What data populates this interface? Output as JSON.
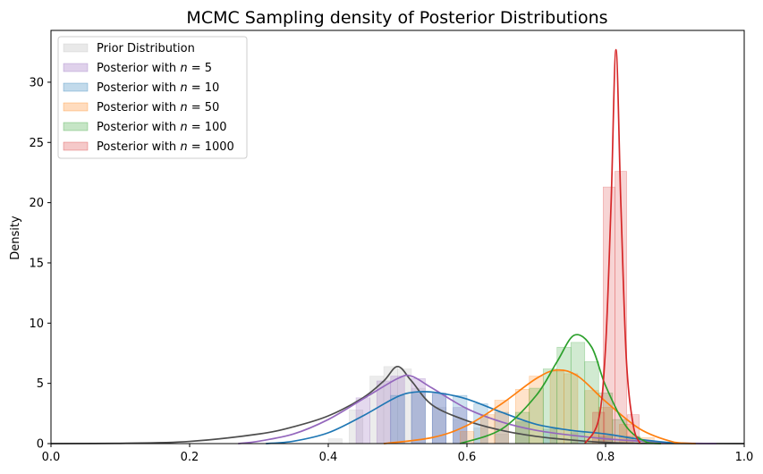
{
  "chart_data": {
    "type": "area",
    "title": "MCMC Sampling density of Posterior Distributions",
    "xlabel": "",
    "ylabel": "Density",
    "xlim": [
      0.0,
      1.0
    ],
    "ylim": [
      0,
      34.3
    ],
    "xticks": [
      0.0,
      0.2,
      0.4,
      0.6,
      0.8,
      1.0
    ],
    "xtick_labels": [
      "0.0",
      "0.2",
      "0.4",
      "0.6",
      "0.8",
      "1.0"
    ],
    "yticks": [
      0,
      5,
      10,
      15,
      20,
      25,
      30
    ],
    "ytick_labels": [
      "0",
      "5",
      "10",
      "15",
      "20",
      "25",
      "30"
    ],
    "grid": false,
    "legend_placement": "upper-left",
    "series": [
      {
        "name": "Prior Distribution",
        "line_color": "#4d4d4d",
        "fill_color": "#bfbfbf",
        "fill_opacity": 0.3,
        "kde": [
          [
            0.0,
            0
          ],
          [
            0.1,
            0.02
          ],
          [
            0.2,
            0.18
          ],
          [
            0.3,
            0.8
          ],
          [
            0.35,
            1.4
          ],
          [
            0.4,
            2.3
          ],
          [
            0.45,
            3.8
          ],
          [
            0.48,
            5.2
          ],
          [
            0.5,
            6.4
          ],
          [
            0.52,
            5.2
          ],
          [
            0.55,
            3.2
          ],
          [
            0.6,
            1.9
          ],
          [
            0.65,
            1.1
          ],
          [
            0.7,
            0.6
          ],
          [
            0.75,
            0.3
          ],
          [
            0.8,
            0.1
          ],
          [
            0.85,
            0.02
          ],
          [
            1.0,
            0
          ]
        ],
        "hist": [
          [
            0.41,
            0.4
          ],
          [
            0.44,
            2.8
          ],
          [
            0.47,
            5.6
          ],
          [
            0.49,
            6.4
          ],
          [
            0.51,
            6.2
          ],
          [
            0.53,
            4.6
          ],
          [
            0.56,
            3.0
          ],
          [
            0.59,
            2.0
          ],
          [
            0.62,
            1.3
          ],
          [
            0.65,
            0.8
          ]
        ]
      },
      {
        "name": "Posterior with $n=5$",
        "line_color": "#9467bd",
        "fill_color": "#9467bd",
        "fill_opacity": 0.25,
        "kde": [
          [
            0.27,
            0
          ],
          [
            0.3,
            0.2
          ],
          [
            0.35,
            0.8
          ],
          [
            0.4,
            2.0
          ],
          [
            0.45,
            3.7
          ],
          [
            0.5,
            5.4
          ],
          [
            0.52,
            5.6
          ],
          [
            0.55,
            4.6
          ],
          [
            0.6,
            2.9
          ],
          [
            0.65,
            1.8
          ],
          [
            0.7,
            1.1
          ],
          [
            0.75,
            0.7
          ],
          [
            0.8,
            0.4
          ],
          [
            0.85,
            0.2
          ],
          [
            0.9,
            0.05
          ],
          [
            0.96,
            0
          ]
        ],
        "hist": [
          [
            0.45,
            3.8
          ],
          [
            0.48,
            5.2
          ],
          [
            0.5,
            5.6
          ],
          [
            0.53,
            5.4
          ],
          [
            0.56,
            4.2
          ],
          [
            0.59,
            3.0
          ]
        ]
      },
      {
        "name": "Posterior with $n=10$",
        "line_color": "#1f77b4",
        "fill_color": "#1f77b4",
        "fill_opacity": 0.22,
        "kde": [
          [
            0.31,
            0
          ],
          [
            0.35,
            0.2
          ],
          [
            0.4,
            0.9
          ],
          [
            0.45,
            2.3
          ],
          [
            0.5,
            3.9
          ],
          [
            0.53,
            4.3
          ],
          [
            0.56,
            4.2
          ],
          [
            0.6,
            3.7
          ],
          [
            0.65,
            2.6
          ],
          [
            0.7,
            1.6
          ],
          [
            0.75,
            1.1
          ],
          [
            0.8,
            0.8
          ],
          [
            0.85,
            0.35
          ],
          [
            0.9,
            0.05
          ],
          [
            0.93,
            0
          ]
        ],
        "hist": [
          [
            0.5,
            4.0
          ],
          [
            0.53,
            4.3
          ],
          [
            0.56,
            4.1
          ],
          [
            0.59,
            4.0
          ],
          [
            0.62,
            3.3
          ],
          [
            0.65,
            2.6
          ],
          [
            0.68,
            1.8
          ],
          [
            0.72,
            1.2
          ],
          [
            0.76,
            0.9
          ],
          [
            0.8,
            0.6
          ]
        ]
      },
      {
        "name": "Posterior with $n=50$",
        "line_color": "#ff7f0e",
        "fill_color": "#ff7f0e",
        "fill_opacity": 0.22,
        "kde": [
          [
            0.48,
            0
          ],
          [
            0.55,
            0.5
          ],
          [
            0.6,
            1.5
          ],
          [
            0.65,
            3.3
          ],
          [
            0.7,
            5.4
          ],
          [
            0.73,
            6.1
          ],
          [
            0.76,
            5.6
          ],
          [
            0.8,
            3.5
          ],
          [
            0.85,
            1.2
          ],
          [
            0.9,
            0.1
          ],
          [
            0.93,
            0
          ]
        ],
        "hist": [
          [
            0.6,
            1.0
          ],
          [
            0.63,
            2.4
          ],
          [
            0.65,
            3.6
          ],
          [
            0.68,
            4.5
          ],
          [
            0.7,
            5.6
          ],
          [
            0.73,
            6.0
          ],
          [
            0.75,
            5.8
          ],
          [
            0.78,
            4.4
          ],
          [
            0.8,
            3.0
          ],
          [
            0.83,
            1.6
          ],
          [
            0.86,
            0.5
          ]
        ]
      },
      {
        "name": "Posterior with $n=100$",
        "line_color": "#2ca02c",
        "fill_color": "#2ca02c",
        "fill_opacity": 0.22,
        "kde": [
          [
            0.59,
            0
          ],
          [
            0.65,
            1.2
          ],
          [
            0.7,
            4.0
          ],
          [
            0.73,
            6.8
          ],
          [
            0.755,
            9.0
          ],
          [
            0.78,
            8.0
          ],
          [
            0.8,
            4.8
          ],
          [
            0.83,
            1.4
          ],
          [
            0.86,
            0.1
          ],
          [
            0.88,
            0
          ]
        ],
        "hist": [
          [
            0.68,
            2.6
          ],
          [
            0.7,
            4.6
          ],
          [
            0.72,
            6.2
          ],
          [
            0.74,
            8.0
          ],
          [
            0.76,
            8.4
          ],
          [
            0.78,
            6.8
          ],
          [
            0.8,
            4.2
          ],
          [
            0.82,
            2.0
          ],
          [
            0.84,
            0.6
          ]
        ]
      },
      {
        "name": "Posterior with $n=1000$",
        "line_color": "#d62728",
        "fill_color": "#d62728",
        "fill_opacity": 0.2,
        "kde": [
          [
            0.77,
            0
          ],
          [
            0.79,
            2.0
          ],
          [
            0.8,
            8.0
          ],
          [
            0.808,
            20.0
          ],
          [
            0.815,
            32.7
          ],
          [
            0.822,
            20.0
          ],
          [
            0.83,
            7.0
          ],
          [
            0.84,
            1.5
          ],
          [
            0.85,
            0
          ]
        ],
        "hist": [
          [
            0.79,
            2.6
          ],
          [
            0.805,
            21.3
          ],
          [
            0.822,
            22.6
          ],
          [
            0.84,
            2.4
          ]
        ]
      }
    ]
  }
}
